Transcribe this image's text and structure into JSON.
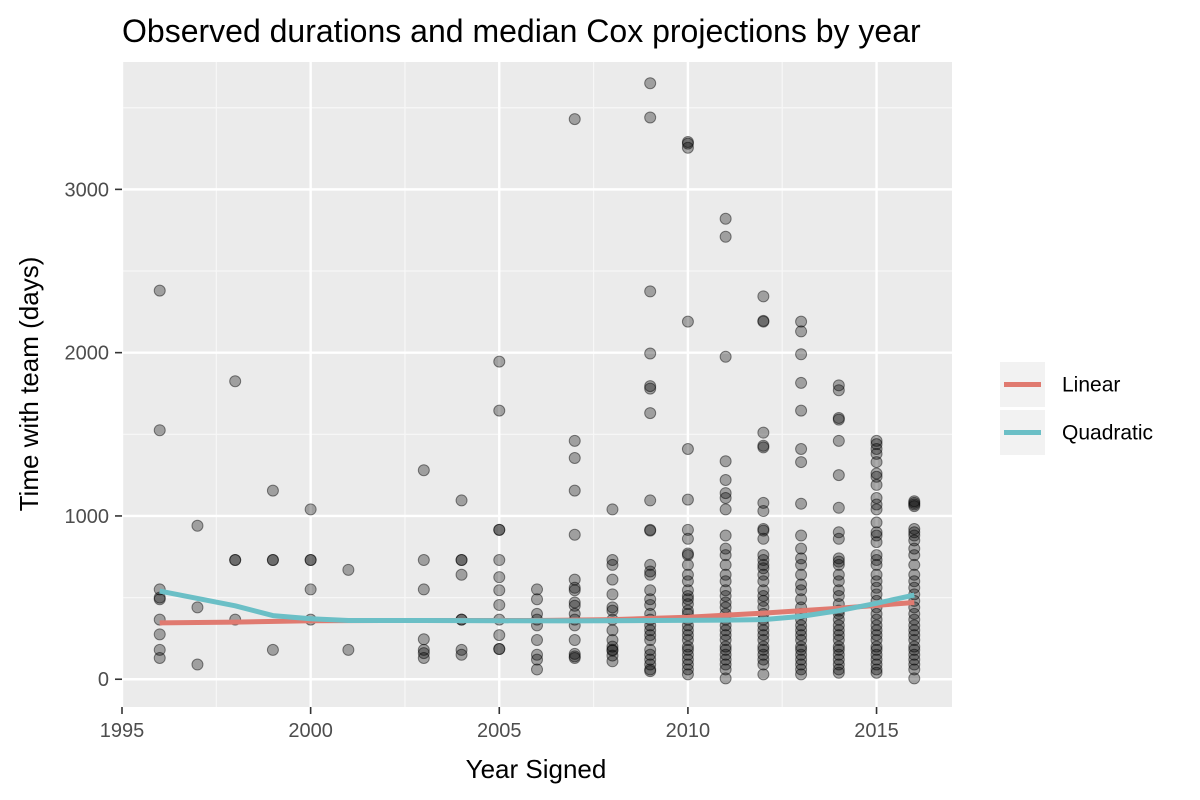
{
  "chart_data": {
    "type": "scatter",
    "title": "Observed durations and median Cox projections by year",
    "xlabel": "Year Signed",
    "ylabel": "Time with team (days)",
    "xlim": [
      1995,
      2017
    ],
    "ylim": [
      -170,
      3780
    ],
    "x_ticks": [
      1995,
      2000,
      2005,
      2010,
      2015
    ],
    "x_tick_labels": [
      "1995",
      "2000",
      "2005",
      "2010",
      "2015"
    ],
    "y_ticks": [
      0,
      1000,
      2000,
      3000
    ],
    "y_tick_labels": [
      "0",
      "1000",
      "2000",
      "3000"
    ],
    "grid": true,
    "legend_position": "right",
    "points": [
      [
        1996,
        2380
      ],
      [
        1996,
        1525
      ],
      [
        1996,
        550
      ],
      [
        1996,
        500
      ],
      [
        1996,
        490
      ],
      [
        1996,
        365
      ],
      [
        1996,
        275
      ],
      [
        1996,
        180
      ],
      [
        1996,
        130
      ],
      [
        1997,
        940
      ],
      [
        1997,
        440
      ],
      [
        1997,
        90
      ],
      [
        1998,
        1825
      ],
      [
        1998,
        730
      ],
      [
        1998,
        730
      ],
      [
        1998,
        365
      ],
      [
        1999,
        1155
      ],
      [
        1999,
        730
      ],
      [
        1999,
        730
      ],
      [
        1999,
        180
      ],
      [
        2000,
        1040
      ],
      [
        2000,
        730
      ],
      [
        2000,
        730
      ],
      [
        2000,
        550
      ],
      [
        2000,
        365
      ],
      [
        2001,
        670
      ],
      [
        2001,
        180
      ],
      [
        2003,
        1280
      ],
      [
        2003,
        730
      ],
      [
        2003,
        550
      ],
      [
        2003,
        245
      ],
      [
        2003,
        180
      ],
      [
        2003,
        160
      ],
      [
        2003,
        130
      ],
      [
        2004,
        1095
      ],
      [
        2004,
        730
      ],
      [
        2004,
        730
      ],
      [
        2004,
        640
      ],
      [
        2004,
        365
      ],
      [
        2004,
        365
      ],
      [
        2004,
        180
      ],
      [
        2004,
        150
      ],
      [
        2005,
        1945
      ],
      [
        2005,
        1645
      ],
      [
        2005,
        915
      ],
      [
        2005,
        915
      ],
      [
        2005,
        730
      ],
      [
        2005,
        625
      ],
      [
        2005,
        545
      ],
      [
        2005,
        455
      ],
      [
        2005,
        365
      ],
      [
        2005,
        270
      ],
      [
        2005,
        185
      ],
      [
        2005,
        185
      ],
      [
        2006,
        550
      ],
      [
        2006,
        490
      ],
      [
        2006,
        400
      ],
      [
        2006,
        365
      ],
      [
        2006,
        330
      ],
      [
        2006,
        240
      ],
      [
        2006,
        150
      ],
      [
        2006,
        120
      ],
      [
        2006,
        60
      ],
      [
        2007,
        3430
      ],
      [
        2007,
        1460
      ],
      [
        2007,
        1355
      ],
      [
        2007,
        1155
      ],
      [
        2007,
        885
      ],
      [
        2007,
        610
      ],
      [
        2007,
        560
      ],
      [
        2007,
        545
      ],
      [
        2007,
        470
      ],
      [
        2007,
        450
      ],
      [
        2007,
        400
      ],
      [
        2007,
        365
      ],
      [
        2007,
        330
      ],
      [
        2007,
        240
      ],
      [
        2007,
        155
      ],
      [
        2007,
        140
      ],
      [
        2007,
        130
      ],
      [
        2008,
        1040
      ],
      [
        2008,
        730
      ],
      [
        2008,
        700
      ],
      [
        2008,
        610
      ],
      [
        2008,
        520
      ],
      [
        2008,
        440
      ],
      [
        2008,
        420
      ],
      [
        2008,
        365
      ],
      [
        2008,
        300
      ],
      [
        2008,
        240
      ],
      [
        2008,
        200
      ],
      [
        2008,
        180
      ],
      [
        2008,
        175
      ],
      [
        2008,
        145
      ],
      [
        2008,
        110
      ],
      [
        2009,
        3650
      ],
      [
        2009,
        3440
      ],
      [
        2009,
        2375
      ],
      [
        2009,
        1995
      ],
      [
        2009,
        1795
      ],
      [
        2009,
        1780
      ],
      [
        2009,
        1630
      ],
      [
        2009,
        1095
      ],
      [
        2009,
        915
      ],
      [
        2009,
        910
      ],
      [
        2009,
        700
      ],
      [
        2009,
        660
      ],
      [
        2009,
        640
      ],
      [
        2009,
        545
      ],
      [
        2009,
        490
      ],
      [
        2009,
        455
      ],
      [
        2009,
        400
      ],
      [
        2009,
        365
      ],
      [
        2009,
        330
      ],
      [
        2009,
        300
      ],
      [
        2009,
        270
      ],
      [
        2009,
        240
      ],
      [
        2009,
        180
      ],
      [
        2009,
        150
      ],
      [
        2009,
        120
      ],
      [
        2009,
        90
      ],
      [
        2009,
        60
      ],
      [
        2009,
        50
      ],
      [
        2010,
        3290
      ],
      [
        2010,
        3280
      ],
      [
        2010,
        3255
      ],
      [
        2010,
        2190
      ],
      [
        2010,
        1410
      ],
      [
        2010,
        1100
      ],
      [
        2010,
        915
      ],
      [
        2010,
        860
      ],
      [
        2010,
        770
      ],
      [
        2010,
        760
      ],
      [
        2010,
        700
      ],
      [
        2010,
        640
      ],
      [
        2010,
        600
      ],
      [
        2010,
        545
      ],
      [
        2010,
        510
      ],
      [
        2010,
        490
      ],
      [
        2010,
        460
      ],
      [
        2010,
        420
      ],
      [
        2010,
        400
      ],
      [
        2010,
        365
      ],
      [
        2010,
        330
      ],
      [
        2010,
        300
      ],
      [
        2010,
        270
      ],
      [
        2010,
        240
      ],
      [
        2010,
        200
      ],
      [
        2010,
        180
      ],
      [
        2010,
        150
      ],
      [
        2010,
        120
      ],
      [
        2010,
        90
      ],
      [
        2010,
        60
      ],
      [
        2010,
        30
      ],
      [
        2011,
        2820
      ],
      [
        2011,
        2710
      ],
      [
        2011,
        1975
      ],
      [
        2011,
        1335
      ],
      [
        2011,
        1220
      ],
      [
        2011,
        1140
      ],
      [
        2011,
        1110
      ],
      [
        2011,
        1040
      ],
      [
        2011,
        880
      ],
      [
        2011,
        800
      ],
      [
        2011,
        760
      ],
      [
        2011,
        700
      ],
      [
        2011,
        640
      ],
      [
        2011,
        600
      ],
      [
        2011,
        545
      ],
      [
        2011,
        510
      ],
      [
        2011,
        470
      ],
      [
        2011,
        440
      ],
      [
        2011,
        400
      ],
      [
        2011,
        365
      ],
      [
        2011,
        330
      ],
      [
        2011,
        300
      ],
      [
        2011,
        270
      ],
      [
        2011,
        240
      ],
      [
        2011,
        200
      ],
      [
        2011,
        180
      ],
      [
        2011,
        150
      ],
      [
        2011,
        120
      ],
      [
        2011,
        90
      ],
      [
        2011,
        60
      ],
      [
        2011,
        5
      ],
      [
        2012,
        2345
      ],
      [
        2012,
        2195
      ],
      [
        2012,
        2190
      ],
      [
        2012,
        1510
      ],
      [
        2012,
        1430
      ],
      [
        2012,
        1420
      ],
      [
        2012,
        1080
      ],
      [
        2012,
        1030
      ],
      [
        2012,
        920
      ],
      [
        2012,
        910
      ],
      [
        2012,
        860
      ],
      [
        2012,
        760
      ],
      [
        2012,
        730
      ],
      [
        2012,
        700
      ],
      [
        2012,
        680
      ],
      [
        2012,
        640
      ],
      [
        2012,
        600
      ],
      [
        2012,
        545
      ],
      [
        2012,
        510
      ],
      [
        2012,
        480
      ],
      [
        2012,
        440
      ],
      [
        2012,
        400
      ],
      [
        2012,
        365
      ],
      [
        2012,
        330
      ],
      [
        2012,
        300
      ],
      [
        2012,
        270
      ],
      [
        2012,
        240
      ],
      [
        2012,
        200
      ],
      [
        2012,
        180
      ],
      [
        2012,
        150
      ],
      [
        2012,
        120
      ],
      [
        2012,
        90
      ],
      [
        2012,
        30
      ],
      [
        2013,
        2190
      ],
      [
        2013,
        2130
      ],
      [
        2013,
        1990
      ],
      [
        2013,
        1815
      ],
      [
        2013,
        1645
      ],
      [
        2013,
        1410
      ],
      [
        2013,
        1330
      ],
      [
        2013,
        1075
      ],
      [
        2013,
        880
      ],
      [
        2013,
        800
      ],
      [
        2013,
        740
      ],
      [
        2013,
        700
      ],
      [
        2013,
        640
      ],
      [
        2013,
        580
      ],
      [
        2013,
        545
      ],
      [
        2013,
        490
      ],
      [
        2013,
        440
      ],
      [
        2013,
        400
      ],
      [
        2013,
        365
      ],
      [
        2013,
        330
      ],
      [
        2013,
        300
      ],
      [
        2013,
        270
      ],
      [
        2013,
        240
      ],
      [
        2013,
        200
      ],
      [
        2013,
        180
      ],
      [
        2013,
        150
      ],
      [
        2013,
        120
      ],
      [
        2013,
        90
      ],
      [
        2013,
        60
      ],
      [
        2013,
        30
      ],
      [
        2014,
        1800
      ],
      [
        2014,
        1770
      ],
      [
        2014,
        1600
      ],
      [
        2014,
        1590
      ],
      [
        2014,
        1460
      ],
      [
        2014,
        1250
      ],
      [
        2014,
        1050
      ],
      [
        2014,
        900
      ],
      [
        2014,
        860
      ],
      [
        2014,
        740
      ],
      [
        2014,
        720
      ],
      [
        2014,
        700
      ],
      [
        2014,
        640
      ],
      [
        2014,
        600
      ],
      [
        2014,
        545
      ],
      [
        2014,
        510
      ],
      [
        2014,
        460
      ],
      [
        2014,
        420
      ],
      [
        2014,
        400
      ],
      [
        2014,
        365
      ],
      [
        2014,
        330
      ],
      [
        2014,
        300
      ],
      [
        2014,
        270
      ],
      [
        2014,
        240
      ],
      [
        2014,
        200
      ],
      [
        2014,
        180
      ],
      [
        2014,
        150
      ],
      [
        2014,
        120
      ],
      [
        2014,
        90
      ],
      [
        2014,
        60
      ],
      [
        2014,
        40
      ],
      [
        2015,
        1460
      ],
      [
        2015,
        1440
      ],
      [
        2015,
        1410
      ],
      [
        2015,
        1380
      ],
      [
        2015,
        1330
      ],
      [
        2015,
        1260
      ],
      [
        2015,
        1240
      ],
      [
        2015,
        1190
      ],
      [
        2015,
        1110
      ],
      [
        2015,
        1070
      ],
      [
        2015,
        1040
      ],
      [
        2015,
        960
      ],
      [
        2015,
        900
      ],
      [
        2015,
        880
      ],
      [
        2015,
        840
      ],
      [
        2015,
        760
      ],
      [
        2015,
        730
      ],
      [
        2015,
        700
      ],
      [
        2015,
        640
      ],
      [
        2015,
        600
      ],
      [
        2015,
        560
      ],
      [
        2015,
        520
      ],
      [
        2015,
        480
      ],
      [
        2015,
        440
      ],
      [
        2015,
        400
      ],
      [
        2015,
        365
      ],
      [
        2015,
        330
      ],
      [
        2015,
        300
      ],
      [
        2015,
        270
      ],
      [
        2015,
        240
      ],
      [
        2015,
        200
      ],
      [
        2015,
        180
      ],
      [
        2015,
        150
      ],
      [
        2015,
        120
      ],
      [
        2015,
        90
      ],
      [
        2015,
        60
      ],
      [
        2015,
        40
      ],
      [
        2016,
        1090
      ],
      [
        2016,
        1080
      ],
      [
        2016,
        1070
      ],
      [
        2016,
        1060
      ],
      [
        2016,
        920
      ],
      [
        2016,
        900
      ],
      [
        2016,
        880
      ],
      [
        2016,
        850
      ],
      [
        2016,
        800
      ],
      [
        2016,
        760
      ],
      [
        2016,
        700
      ],
      [
        2016,
        640
      ],
      [
        2016,
        600
      ],
      [
        2016,
        560
      ],
      [
        2016,
        520
      ],
      [
        2016,
        480
      ],
      [
        2016,
        440
      ],
      [
        2016,
        400
      ],
      [
        2016,
        365
      ],
      [
        2016,
        330
      ],
      [
        2016,
        300
      ],
      [
        2016,
        270
      ],
      [
        2016,
        240
      ],
      [
        2016,
        200
      ],
      [
        2016,
        180
      ],
      [
        2016,
        150
      ],
      [
        2016,
        120
      ],
      [
        2016,
        90
      ],
      [
        2016,
        60
      ],
      [
        2016,
        5
      ]
    ],
    "point_color": "#000000",
    "point_opacity": 0.32,
    "series": [
      {
        "name": "Linear",
        "color": "#E07A70",
        "x": [
          1996,
          1998,
          2000,
          2002,
          2004,
          2006,
          2008,
          2010,
          2012,
          2014,
          2016
        ],
        "y": [
          345,
          350,
          358,
          360,
          360,
          360,
          365,
          380,
          405,
          435,
          470
        ]
      },
      {
        "name": "Quadratic",
        "color": "#6BBFC6",
        "x": [
          1996,
          1998,
          1999,
          2000,
          2001,
          2003,
          2005,
          2007,
          2009,
          2011,
          2012,
          2013,
          2014,
          2015,
          2016
        ],
        "y": [
          540,
          450,
          390,
          370,
          360,
          360,
          358,
          357,
          360,
          362,
          365,
          385,
          420,
          465,
          515
        ]
      }
    ]
  }
}
